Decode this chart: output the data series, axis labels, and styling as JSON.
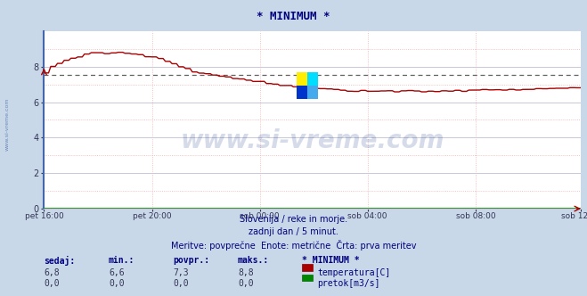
{
  "title": "* MINIMUM *",
  "title_color": "#000080",
  "bg_color": "#c8d8e8",
  "plot_bg_color": "#ffffff",
  "plot_border_left_color": "#4466aa",
  "grid_color_major": "#c8c8d8",
  "grid_color_minor": "#f0b0b0",
  "x_tick_labels": [
    "pet 16:00",
    "pet 20:00",
    "sob 00:00",
    "sob 04:00",
    "sob 08:00",
    "sob 12:00"
  ],
  "x_tick_positions": [
    0,
    48,
    96,
    144,
    192,
    239
  ],
  "y_min": 0,
  "y_max": 10,
  "y_ticks": [
    0,
    2,
    4,
    6,
    8
  ],
  "dashed_line_y": 7.55,
  "dashed_line_color": "#606060",
  "temp_color": "#aa0000",
  "pretok_color": "#008800",
  "watermark_text": "www.si-vreme.com",
  "watermark_color": "#1a3a8a",
  "watermark_alpha": 0.18,
  "left_label": "www.si-vreme.com",
  "subtitle1": "Slovenija / reke in morje.",
  "subtitle2": "zadnji dan / 5 minut.",
  "subtitle3": "Meritve: povprečne  Enote: metrične  Črta: prva meritev",
  "subtitle_color": "#000080",
  "table_headers": [
    "sedaj:",
    "min.:",
    "povpr.:",
    "maks.:",
    "* MINIMUM *"
  ],
  "table_row1": [
    "6,8",
    "6,6",
    "7,3",
    "8,8",
    "temperatura[C]"
  ],
  "table_row2": [
    "0,0",
    "0,0",
    "0,0",
    "0,0",
    "pretok[m3/s]"
  ],
  "table_color": "#000080",
  "n_points": 240
}
